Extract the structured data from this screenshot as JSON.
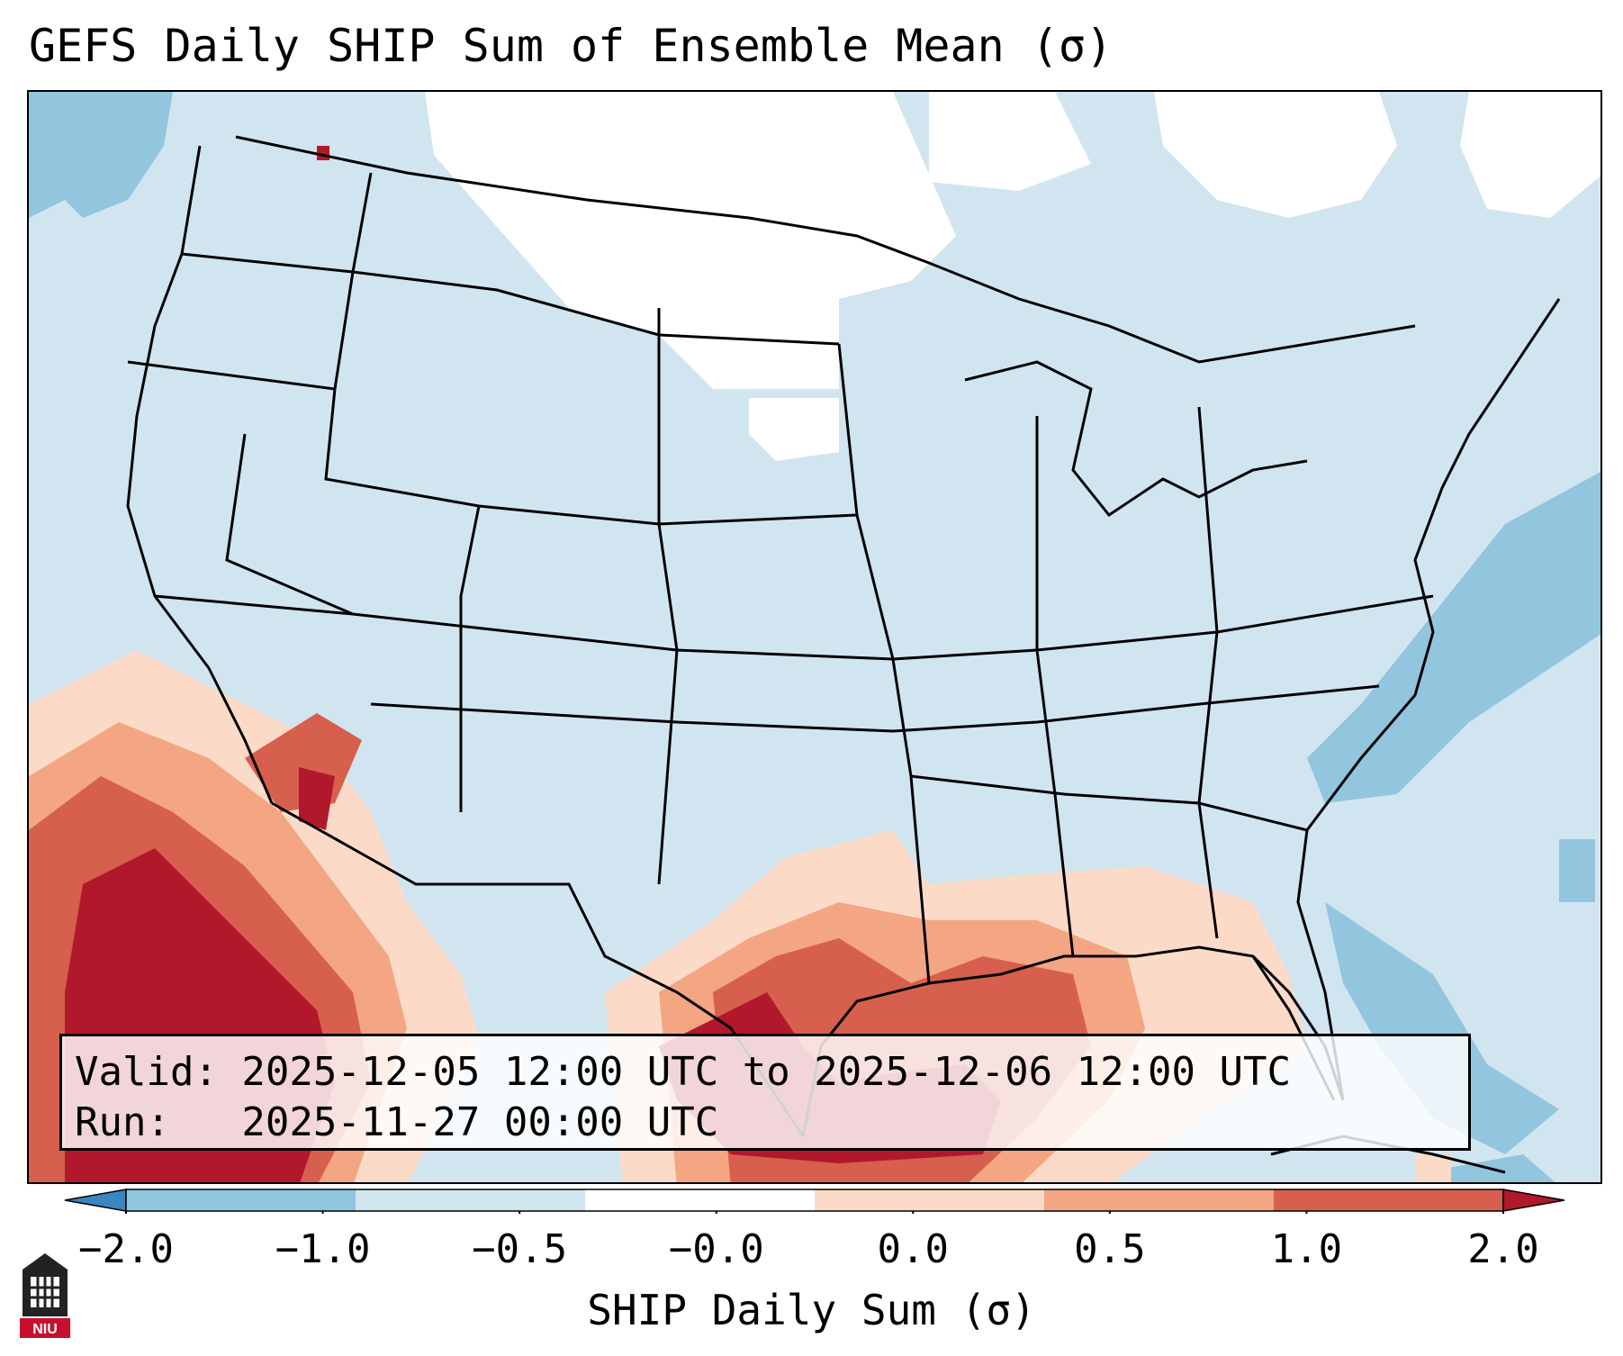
{
  "title": "GEFS Daily SHIP Sum of Ensemble Mean (σ)",
  "info": {
    "valid_line": "Valid: 2025-12-05 12:00 UTC to 2025-12-06 12:00 UTC",
    "run_line": "Run:   2025-11-27 00:00 UTC"
  },
  "colorbar": {
    "label": "SHIP Daily Sum (σ)",
    "ticks": [
      "−2.0",
      "−1.0",
      "−0.5",
      "−0.0",
      "0.0",
      "0.5",
      "1.0",
      "2.0"
    ],
    "colors": [
      "#3a86c0",
      "#92c5de",
      "#d1e5f0",
      "#ffffff",
      "#fbdbc7",
      "#f4a582",
      "#d6604d",
      "#b2182b"
    ]
  },
  "logo": {
    "text": "NIU",
    "color": "#c8102e"
  },
  "map": {
    "region": "Contiguous United States",
    "background_color": "#d1e5f0",
    "boundary_color": "#000000"
  }
}
